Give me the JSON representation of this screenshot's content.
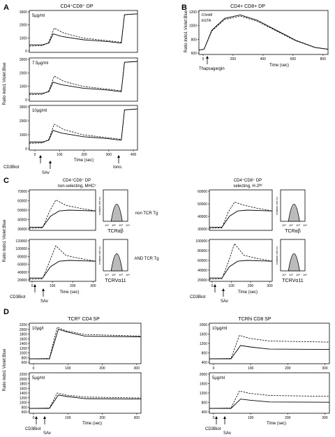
{
  "panels": {
    "A": {
      "letter": "A",
      "title": "CD4⁺CD8⁺ DP",
      "ylabel": "Ratio Indo1 Violet:Blue",
      "xlabel": "Time (sec)",
      "subplots": [
        {
          "conc": "5µg/ml",
          "yticks": [
            "3000",
            "2000",
            "1000",
            "0"
          ]
        },
        {
          "conc": "7.5µg/ml",
          "yticks": [
            "3000",
            "2000",
            "1000",
            "0"
          ]
        },
        {
          "conc": "10µg/ml",
          "yticks": [
            "3000",
            "2000",
            "1000",
            "0"
          ]
        }
      ],
      "xticks": [
        "0",
        "100",
        "200",
        "300",
        "400"
      ],
      "annotations": {
        "cd3biot": "CD3Biot",
        "sav": "SAv",
        "iono": "Iono."
      }
    },
    "B": {
      "letter": "B",
      "title": "CD4+ CD8+ DP",
      "ylabel": "Ratio Indo1 Violet:Blue",
      "xlabel": "Time (sec)",
      "legend": [
        "0.5mM",
        "EGTA"
      ],
      "yticks": [
        "1200",
        "1000",
        "800",
        "600"
      ],
      "xticks": [
        "0",
        "200",
        "400",
        "600",
        "800"
      ],
      "arrow_label": "Thapsagargin"
    },
    "C": {
      "letter": "C",
      "ylabel": "Ratio Indo1 Violet:Blue",
      "left_title1": "CD4⁺CD8⁺ DP",
      "left_title2": "non-selecting, MHCᵒ",
      "right_title1": "CD4⁺CD8⁺ DP",
      "right_title2": "selecting, H-2ᵇᵇ",
      "row1_label": "non TCR Tg",
      "row2_label": "AND TCR Tg",
      "left_top_yticks": [
        "70000",
        "60000",
        "50000",
        "40000",
        "30000"
      ],
      "left_bot_yticks": [
        "120000",
        "100000",
        "80000",
        "60000",
        "40000",
        "20000"
      ],
      "right_top_yticks": [
        "60000",
        "50000",
        "40000",
        "30000"
      ],
      "right_bot_yticks": [
        "100000",
        "80000",
        "60000",
        "40000",
        "20000"
      ],
      "xticks": [
        "0",
        "100",
        "200",
        "300"
      ],
      "xlabel": "Time (sec)",
      "histo_ylabel": "relative cell no.",
      "histo_xticks": [
        "10¹",
        "10²",
        "10³",
        "10⁴"
      ],
      "histo_label_top": "TCRαβ",
      "histo_label_bot": "TCRVα11",
      "cd3biot": "CD3Biot",
      "sav": "SAv"
    },
    "D": {
      "letter": "D",
      "ylabel": "Ratio Indo1 Violet:Blue",
      "left_title": "TCRʰⁱ CD4 SP",
      "right_title": "TCRhi CD8 SP",
      "left_top_conc": "10µg/l",
      "left_bot_conc": "5µg/ml",
      "right_top_conc": "10µg/ml",
      "right_bot_conc": "5µg/ml",
      "yticks": [
        "2200",
        "2000",
        "1800",
        "1600",
        "1400",
        "1200",
        "1000",
        "800",
        "600"
      ],
      "right_yticks": [
        "2000",
        "1600",
        "1200",
        "800",
        "400"
      ],
      "xticks": [
        "0",
        "100",
        "200",
        "300"
      ],
      "xlabel": "Time (sec)",
      "cd3biot": "CD3Biot",
      "sav": "SAv"
    }
  }
}
